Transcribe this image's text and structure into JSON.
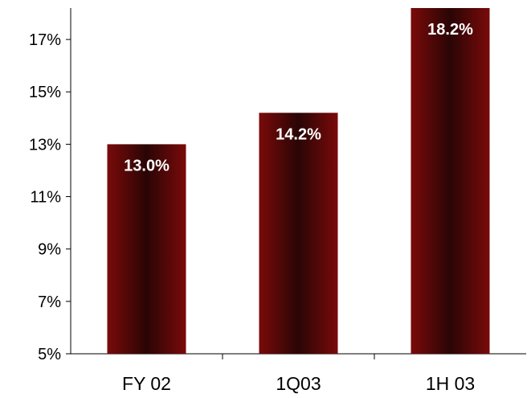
{
  "chart_data": {
    "type": "bar",
    "categories": [
      "FY 02",
      "1Q03",
      "1H 03"
    ],
    "values": [
      13.0,
      14.2,
      18.2
    ],
    "data_labels": [
      "13.0%",
      "14.2%",
      "18.2%"
    ],
    "title": "",
    "xlabel": "",
    "ylabel": "",
    "ylim": [
      5,
      18.2
    ],
    "yticks": [
      5,
      7,
      9,
      11,
      13,
      15,
      17
    ],
    "ytick_labels": [
      "5%",
      "7%",
      "9%",
      "11%",
      "13%",
      "15%",
      "17%"
    ],
    "grid": false,
    "legend": "none",
    "colors": {
      "bar_edge": "#7a0a0a",
      "bar_center": "#2a0505",
      "axis": "#000000",
      "label": "#ffffff"
    }
  }
}
